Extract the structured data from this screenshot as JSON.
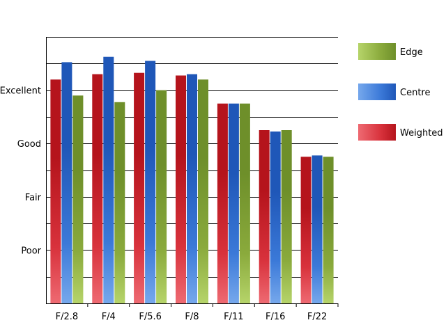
{
  "chart_data": {
    "type": "bar",
    "categories": [
      "F/2.8",
      "F/4",
      "F/5.6",
      "F/8",
      "F/11",
      "F/16",
      "F/22"
    ],
    "y_tick_labels": [
      {
        "value": 2,
        "label": "Poor"
      },
      {
        "value": 4,
        "label": "Fair"
      },
      {
        "value": 6,
        "label": "Good"
      },
      {
        "value": 8,
        "label": "Excellent"
      }
    ],
    "ylim": [
      0,
      10
    ],
    "grid": true,
    "legend_position": "right",
    "series": [
      {
        "name": "Weighted",
        "values": [
          8.4,
          8.6,
          8.65,
          8.55,
          7.5,
          6.5,
          5.5
        ],
        "colors": {
          "dark": "#b5141c",
          "mid": "#d8323c",
          "light": "#ee6a72"
        }
      },
      {
        "name": "Centre",
        "values": [
          9.05,
          9.25,
          9.1,
          8.6,
          7.5,
          6.45,
          5.55
        ],
        "colors": {
          "dark": "#1f57b8",
          "mid": "#3b79d8",
          "light": "#76a8ec"
        }
      },
      {
        "name": "Edge",
        "values": [
          7.8,
          7.55,
          8.0,
          8.4,
          7.5,
          6.5,
          5.5
        ],
        "colors": {
          "dark": "#6e8f2a",
          "mid": "#8aaa3c",
          "light": "#b6d46a"
        }
      }
    ],
    "legend_order": [
      "Edge",
      "Centre",
      "Weighted"
    ]
  }
}
